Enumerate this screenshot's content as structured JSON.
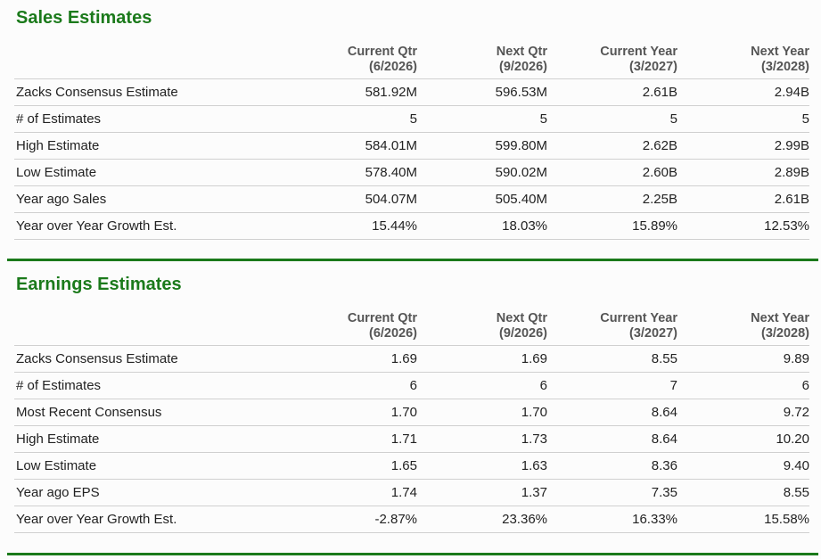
{
  "sales": {
    "title": "Sales Estimates",
    "headers": [
      {
        "line1": "Current Qtr",
        "line2": "(6/2026)"
      },
      {
        "line1": "Next Qtr",
        "line2": "(9/2026)"
      },
      {
        "line1": "Current Year",
        "line2": "(3/2027)"
      },
      {
        "line1": "Next Year",
        "line2": "(3/2028)"
      }
    ],
    "rows": [
      {
        "label": "Zacks Consensus Estimate",
        "values": [
          "581.92M",
          "596.53M",
          "2.61B",
          "2.94B"
        ]
      },
      {
        "label": "# of Estimates",
        "values": [
          "5",
          "5",
          "5",
          "5"
        ]
      },
      {
        "label": "High Estimate",
        "values": [
          "584.01M",
          "599.80M",
          "2.62B",
          "2.99B"
        ]
      },
      {
        "label": "Low Estimate",
        "values": [
          "578.40M",
          "590.02M",
          "2.60B",
          "2.89B"
        ]
      },
      {
        "label": "Year ago Sales",
        "values": [
          "504.07M",
          "505.40M",
          "2.25B",
          "2.61B"
        ]
      },
      {
        "label": "Year over Year Growth Est.",
        "values": [
          "15.44%",
          "18.03%",
          "15.89%",
          "12.53%"
        ]
      }
    ]
  },
  "earnings": {
    "title": "Earnings Estimates",
    "headers": [
      {
        "line1": "Current Qtr",
        "line2": "(6/2026)"
      },
      {
        "line1": "Next Qtr",
        "line2": "(9/2026)"
      },
      {
        "line1": "Current Year",
        "line2": "(3/2027)"
      },
      {
        "line1": "Next Year",
        "line2": "(3/2028)"
      }
    ],
    "rows": [
      {
        "label": "Zacks Consensus Estimate",
        "values": [
          "1.69",
          "1.69",
          "8.55",
          "9.89"
        ]
      },
      {
        "label": "# of Estimates",
        "values": [
          "6",
          "6",
          "7",
          "6"
        ]
      },
      {
        "label": "Most Recent Consensus",
        "values": [
          "1.70",
          "1.70",
          "8.64",
          "9.72"
        ]
      },
      {
        "label": "High Estimate",
        "values": [
          "1.71",
          "1.73",
          "8.64",
          "10.20"
        ]
      },
      {
        "label": "Low Estimate",
        "values": [
          "1.65",
          "1.63",
          "8.36",
          "9.40"
        ]
      },
      {
        "label": "Year ago EPS",
        "values": [
          "1.74",
          "1.37",
          "7.35",
          "8.55"
        ]
      },
      {
        "label": "Year over Year Growth Est.",
        "values": [
          "-2.87%",
          "23.36%",
          "16.33%",
          "15.58%"
        ]
      }
    ]
  },
  "colors": {
    "accent_green": "#1b7a1b",
    "rule_gray": "#d0d0d0"
  }
}
